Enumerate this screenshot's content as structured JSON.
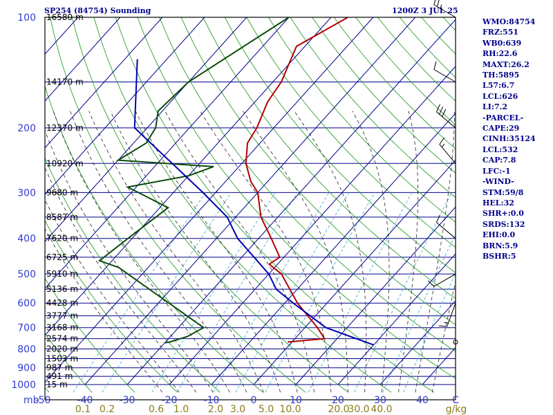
{
  "header": {
    "station": "SP254 (84754) Sounding",
    "time": "1200Z  3 JUL 25"
  },
  "indices": [
    "WMO:84754",
    "FRZ:551",
    "WB0:639",
    "RH:22.6",
    "MAXT:26.2",
    "TH:5895",
    "L57:6.7",
    "LCL:626",
    "LI:7.2",
    "-PARCEL-",
    "CAPE:29",
    "CINH:35124",
    "LCL:532",
    "CAP:7.8",
    "LFC:-1",
    "-WIND-",
    "STM:59/8",
    "HEL:32",
    "SHR+:0.0",
    "SRDS:132",
    "EHI:0.0",
    "BRN:5.9",
    "BSHR:5"
  ],
  "colors": {
    "frame": "#000000",
    "isobar": "#00008b",
    "isotherm": "#00008b",
    "dry_adiabat": "#2e9e2e",
    "moist_adiabat": "#222222",
    "mixing_ratio": "#4ab0d0",
    "temperature": "#b00000",
    "dewpoint": "#0a4a0a",
    "parcel": "#0000b0",
    "pressure_label": "#2f3bd0",
    "mixing_label": "#8b7a1a"
  },
  "chart_data": {
    "type": "line",
    "title": "SP254 (84754) Sounding",
    "time": "1200Z  3 JUL 25",
    "y_scale": "log pressure (hPa)",
    "ylim": [
      1000,
      100
    ],
    "xlim": [
      -50,
      50
    ],
    "x_unit_label": "mb",
    "pressure_levels": [
      100,
      200,
      300,
      400,
      500,
      600,
      700,
      800,
      900,
      1000
    ],
    "pressure_tick_labels": [
      "100",
      "200",
      "300",
      "400",
      "500",
      "600",
      "700",
      "800",
      "900",
      "1000"
    ],
    "temperature_ticks": [
      -50,
      -40,
      -30,
      -20,
      -10,
      0,
      10,
      20,
      30,
      40
    ],
    "temperature_tick_labels": [
      "-50",
      "-40",
      "-30",
      "-20",
      "-10",
      "0",
      "10",
      "20",
      "30",
      "40"
    ],
    "height_labels": [
      {
        "p": 100,
        "label": "16580 m"
      },
      {
        "p": 150,
        "label": "14170 m"
      },
      {
        "p": 200,
        "label": "12370 m"
      },
      {
        "p": 250,
        "label": "10920 m"
      },
      {
        "p": 300,
        "label": "9680 m"
      },
      {
        "p": 350,
        "label": "8587 m"
      },
      {
        "p": 400,
        "label": "7620 m"
      },
      {
        "p": 450,
        "label": "6725 m"
      },
      {
        "p": 500,
        "label": "5910 m"
      },
      {
        "p": 550,
        "label": "5136 m"
      },
      {
        "p": 600,
        "label": "4428 m"
      },
      {
        "p": 650,
        "label": "3777 m"
      },
      {
        "p": 700,
        "label": "3168 m"
      },
      {
        "p": 750,
        "label": "2574 m"
      },
      {
        "p": 800,
        "label": "2020 m"
      },
      {
        "p": 850,
        "label": "1503 m"
      },
      {
        "p": 900,
        "label": "987 m"
      },
      {
        "p": 950,
        "label": "491 m"
      },
      {
        "p": 1000,
        "label": "15 m"
      }
    ],
    "mixing_ratio_labels": [
      "0.1",
      "0.2",
      "0.6",
      "1.0",
      "2.0",
      "3.0",
      "5.0",
      "10.0",
      "20.0",
      "30.0",
      "40.0",
      "g/kg"
    ],
    "mixing_ratio_values": [
      0.1,
      0.2,
      0.6,
      1.0,
      2.0,
      3.0,
      5.0,
      10.0,
      20.0,
      30.0,
      40.0
    ],
    "series": [
      {
        "key": "temperature",
        "points": [
          [
            100,
            -56
          ],
          [
            120,
            -62
          ],
          [
            150,
            -58
          ],
          [
            170,
            -57
          ],
          [
            200,
            -54
          ],
          [
            220,
            -53
          ],
          [
            250,
            -49
          ],
          [
            280,
            -44
          ],
          [
            300,
            -40
          ],
          [
            350,
            -34
          ],
          [
            400,
            -27
          ],
          [
            450,
            -21
          ],
          [
            470,
            -22
          ],
          [
            500,
            -17
          ],
          [
            600,
            -7
          ],
          [
            700,
            3
          ],
          [
            750,
            7
          ],
          [
            766,
            -1
          ]
        ]
      },
      {
        "key": "dewpoint",
        "points": [
          [
            100,
            -70
          ],
          [
            150,
            -80
          ],
          [
            180,
            -81
          ],
          [
            200,
            -78
          ],
          [
            220,
            -77
          ],
          [
            245,
            -80
          ],
          [
            255,
            -56
          ],
          [
            270,
            -60
          ],
          [
            290,
            -72
          ],
          [
            330,
            -58
          ],
          [
            400,
            -61
          ],
          [
            460,
            -63
          ],
          [
            480,
            -57
          ],
          [
            700,
            -24
          ],
          [
            740,
            -26
          ],
          [
            766,
            -29
          ],
          [
            770,
            -30
          ]
        ]
      },
      {
        "key": "parcel",
        "points": [
          [
            130,
            -97
          ],
          [
            200,
            -83
          ],
          [
            300,
            -53
          ],
          [
            350,
            -42
          ],
          [
            400,
            -35
          ],
          [
            500,
            -20
          ],
          [
            550,
            -15
          ],
          [
            600,
            -8
          ],
          [
            700,
            5
          ],
          [
            780,
            20
          ]
        ]
      }
    ],
    "wind_barbs": [
      {
        "p": 100,
        "dir": 300,
        "speed": 25
      },
      {
        "p": 150,
        "dir": 300,
        "speed": 10
      },
      {
        "p": 200,
        "dir": 310,
        "speed": 30
      },
      {
        "p": 250,
        "dir": 320,
        "speed": 15
      },
      {
        "p": 400,
        "dir": 310,
        "speed": 10
      },
      {
        "p": 500,
        "dir": 240,
        "speed": 10
      },
      {
        "p": 600,
        "dir": 200,
        "speed": 15
      }
    ],
    "grid": true
  }
}
